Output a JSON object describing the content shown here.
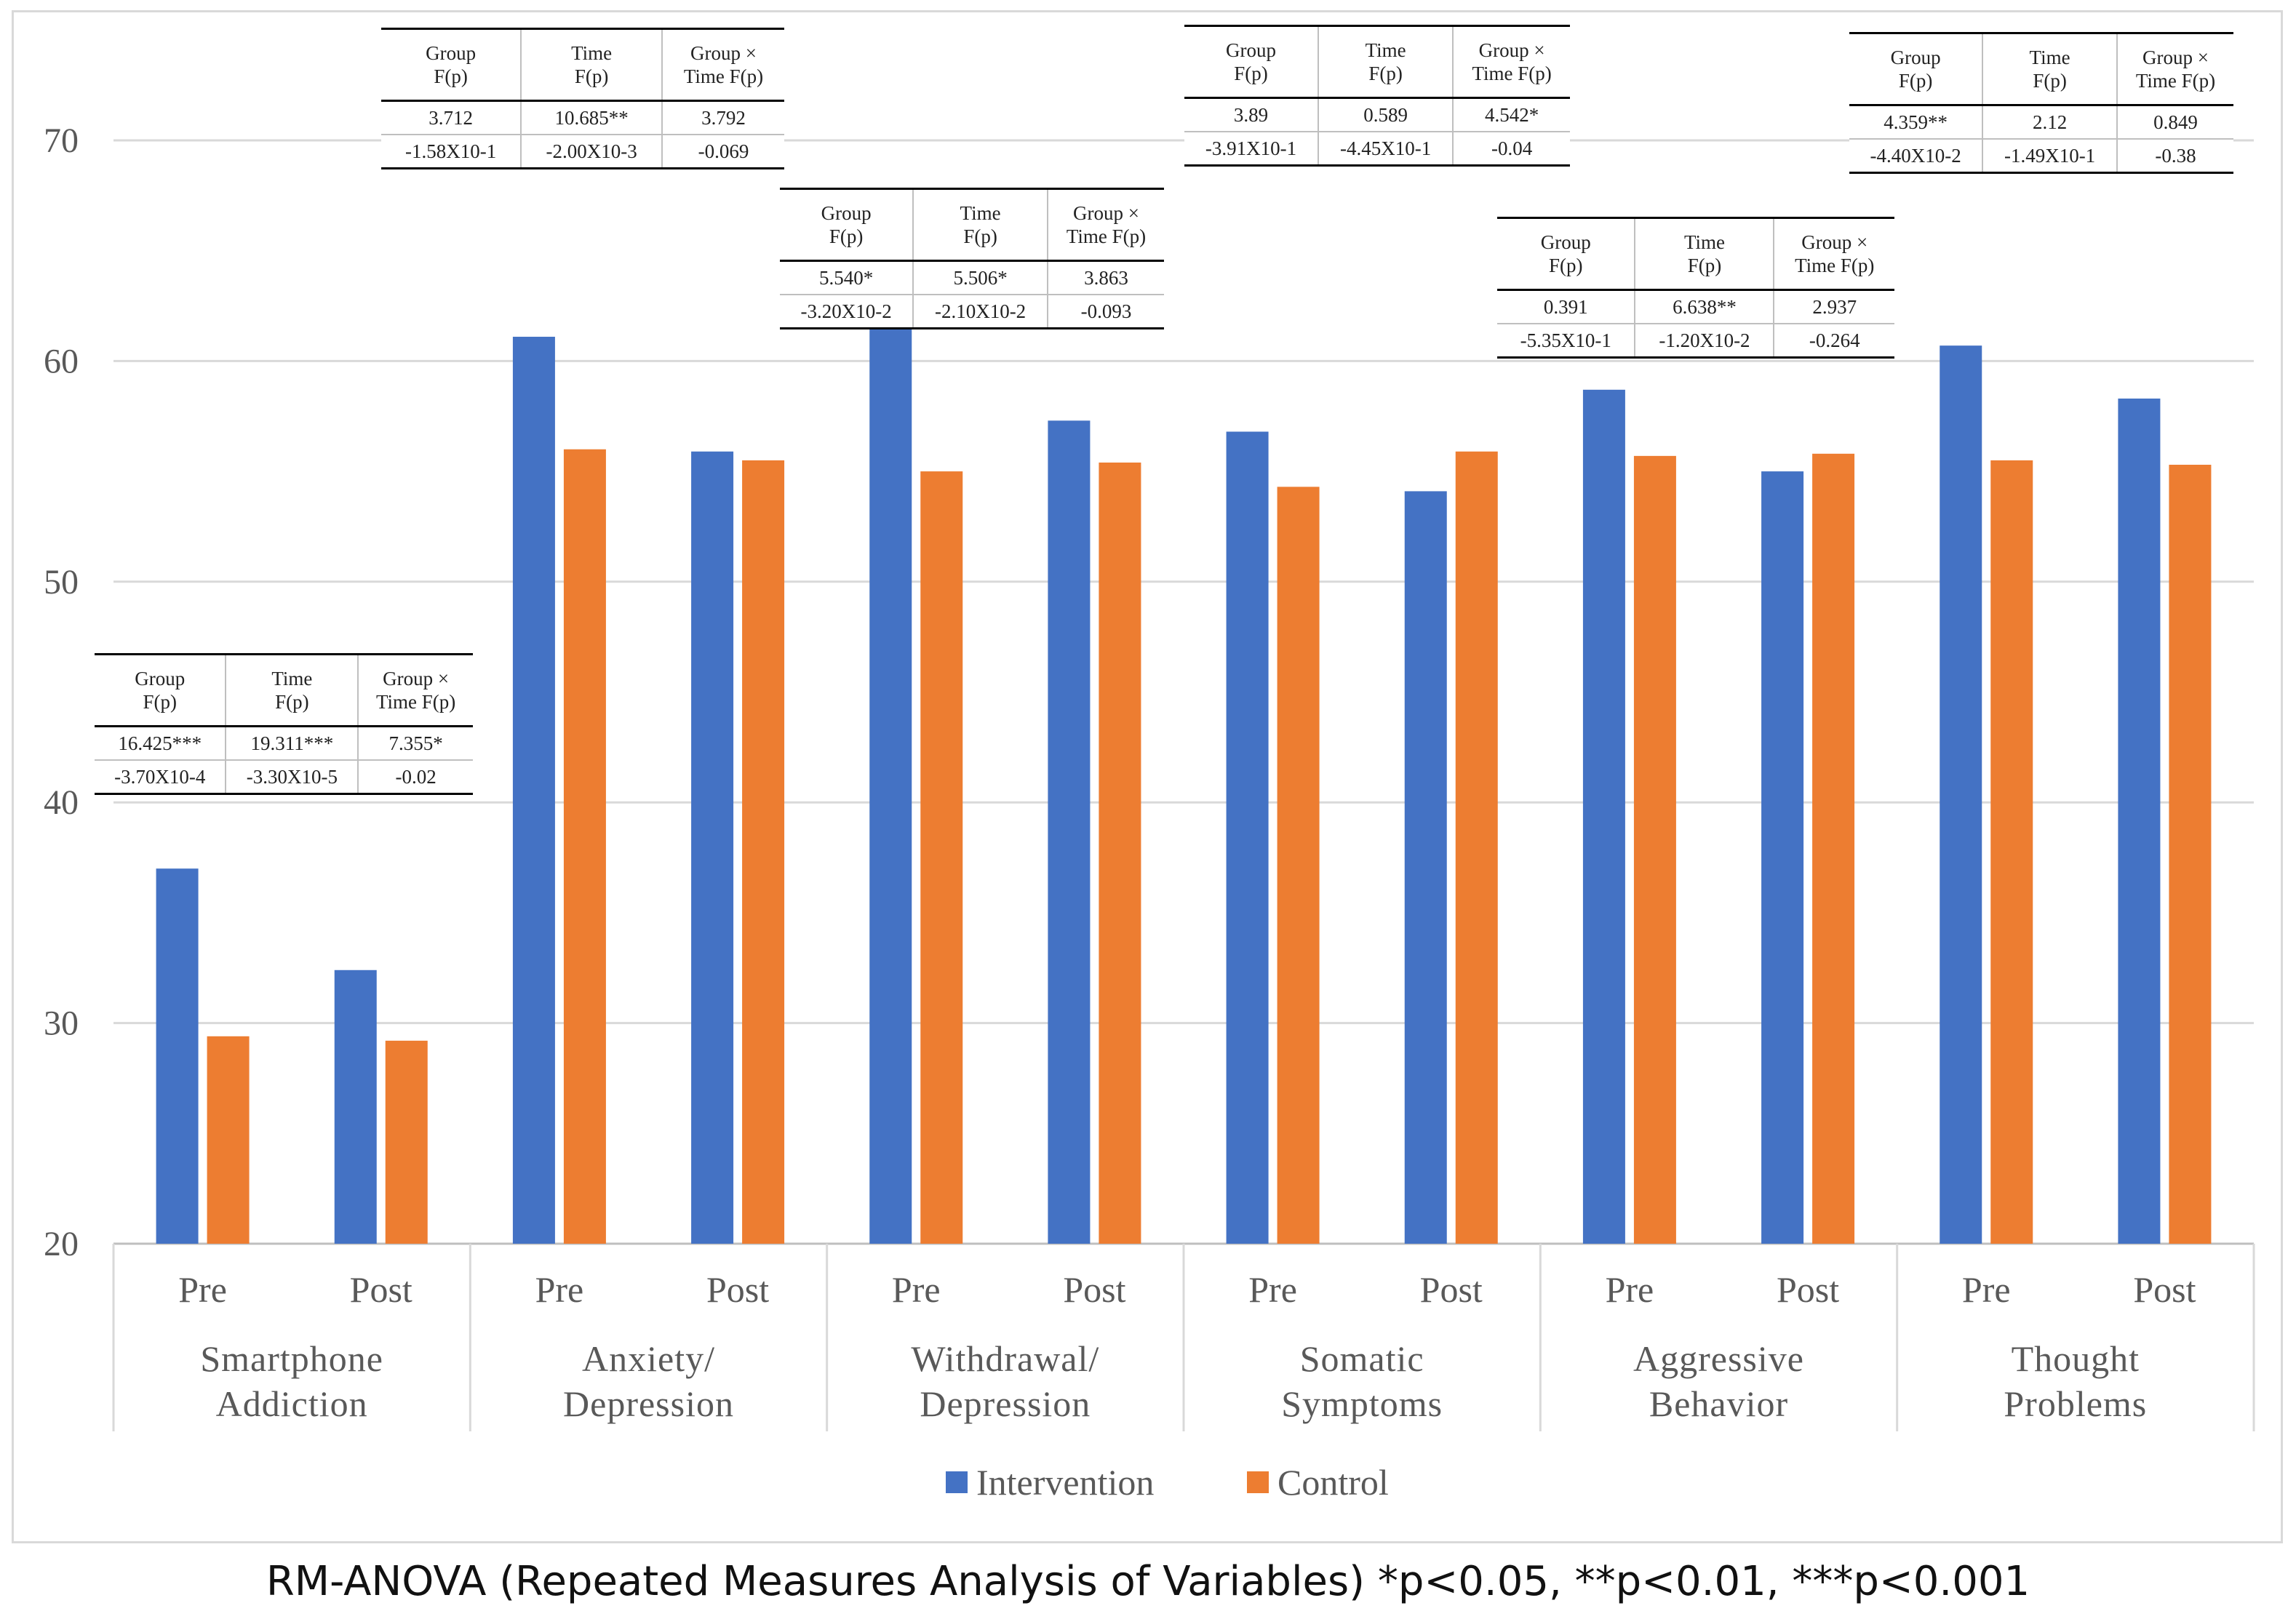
{
  "chart_data": {
    "type": "bar",
    "ylim": [
      20,
      70
    ],
    "yticks": [
      20,
      30,
      40,
      50,
      60,
      70
    ],
    "grid": true,
    "legend_position": "bottom",
    "groups": [
      {
        "label": "Smartphone Addiction",
        "label_lines": [
          "Smartphone",
          "Addiction"
        ],
        "times": [
          "Pre",
          "Post"
        ]
      },
      {
        "label": "Anxiety/ Depression",
        "label_lines": [
          "Anxiety/",
          "Depression"
        ],
        "times": [
          "Pre",
          "Post"
        ]
      },
      {
        "label": "Withdrawal/ Depression",
        "label_lines": [
          "Withdrawal/",
          "Depression"
        ],
        "times": [
          "Pre",
          "Post"
        ]
      },
      {
        "label": "Somatic Symptoms",
        "label_lines": [
          "Somatic",
          "Symptoms"
        ],
        "times": [
          "Pre",
          "Post"
        ]
      },
      {
        "label": "Aggressive Behavior",
        "label_lines": [
          "Aggressive",
          "Behavior"
        ],
        "times": [
          "Pre",
          "Post"
        ]
      },
      {
        "label": "Thought Problems",
        "label_lines": [
          "Thought",
          "Problems"
        ],
        "times": [
          "Pre",
          "Post"
        ]
      }
    ],
    "categories": [
      "Pre",
      "Post",
      "Pre",
      "Post",
      "Pre",
      "Post",
      "Pre",
      "Post",
      "Pre",
      "Post",
      "Pre",
      "Post"
    ],
    "series": [
      {
        "name": "Intervention",
        "color": "#4472c4",
        "values": [
          37.0,
          32.4,
          61.1,
          55.9,
          61.5,
          57.3,
          56.8,
          54.1,
          58.7,
          55.0,
          60.7,
          58.3
        ]
      },
      {
        "name": "Control",
        "color": "#ed7d31",
        "values": [
          29.4,
          29.2,
          56.0,
          55.5,
          55.0,
          55.4,
          54.3,
          55.9,
          55.7,
          55.8,
          55.5,
          55.3
        ]
      }
    ],
    "stat_headers": [
      [
        "Group",
        "F(p)"
      ],
      [
        "Time",
        "F(p)"
      ],
      [
        "Group ×",
        "Time F(p)"
      ]
    ],
    "stat_tables": [
      {
        "group": "Smartphone Addiction",
        "f": [
          "16.425***",
          "19.311***",
          "7.355*"
        ],
        "p": [
          "-3.70X10-4",
          "-3.30X10-5",
          "-0.02"
        ]
      },
      {
        "group": "Anxiety/ Depression",
        "f": [
          "3.712",
          "10.685**",
          "3.792"
        ],
        "p": [
          "-1.58X10-1",
          "-2.00X10-3",
          "-0.069"
        ]
      },
      {
        "group": "Withdrawal/ Depression",
        "f": [
          "5.540*",
          "5.506*",
          "3.863"
        ],
        "p": [
          "-3.20X10-2",
          "-2.10X10-2",
          "-0.093"
        ]
      },
      {
        "group": "Somatic Symptoms",
        "f": [
          "3.89",
          "0.589",
          "4.542*"
        ],
        "p": [
          "-3.91X10-1",
          "-4.45X10-1",
          "-0.04"
        ]
      },
      {
        "group": "Aggressive Behavior",
        "f": [
          "0.391",
          "6.638**",
          "2.937"
        ],
        "p": [
          "-5.35X10-1",
          "-1.20X10-2",
          "-0.264"
        ]
      },
      {
        "group": "Thought Problems",
        "f": [
          "4.359**",
          "2.12",
          "0.849"
        ],
        "p": [
          "-4.40X10-2",
          "-1.49X10-1",
          "-0.38"
        ]
      }
    ]
  },
  "footnote": "RM-ANOVA (Repeated Measures Analysis of Variables) *p<0.05, **p<0.01, ***p<0.001"
}
